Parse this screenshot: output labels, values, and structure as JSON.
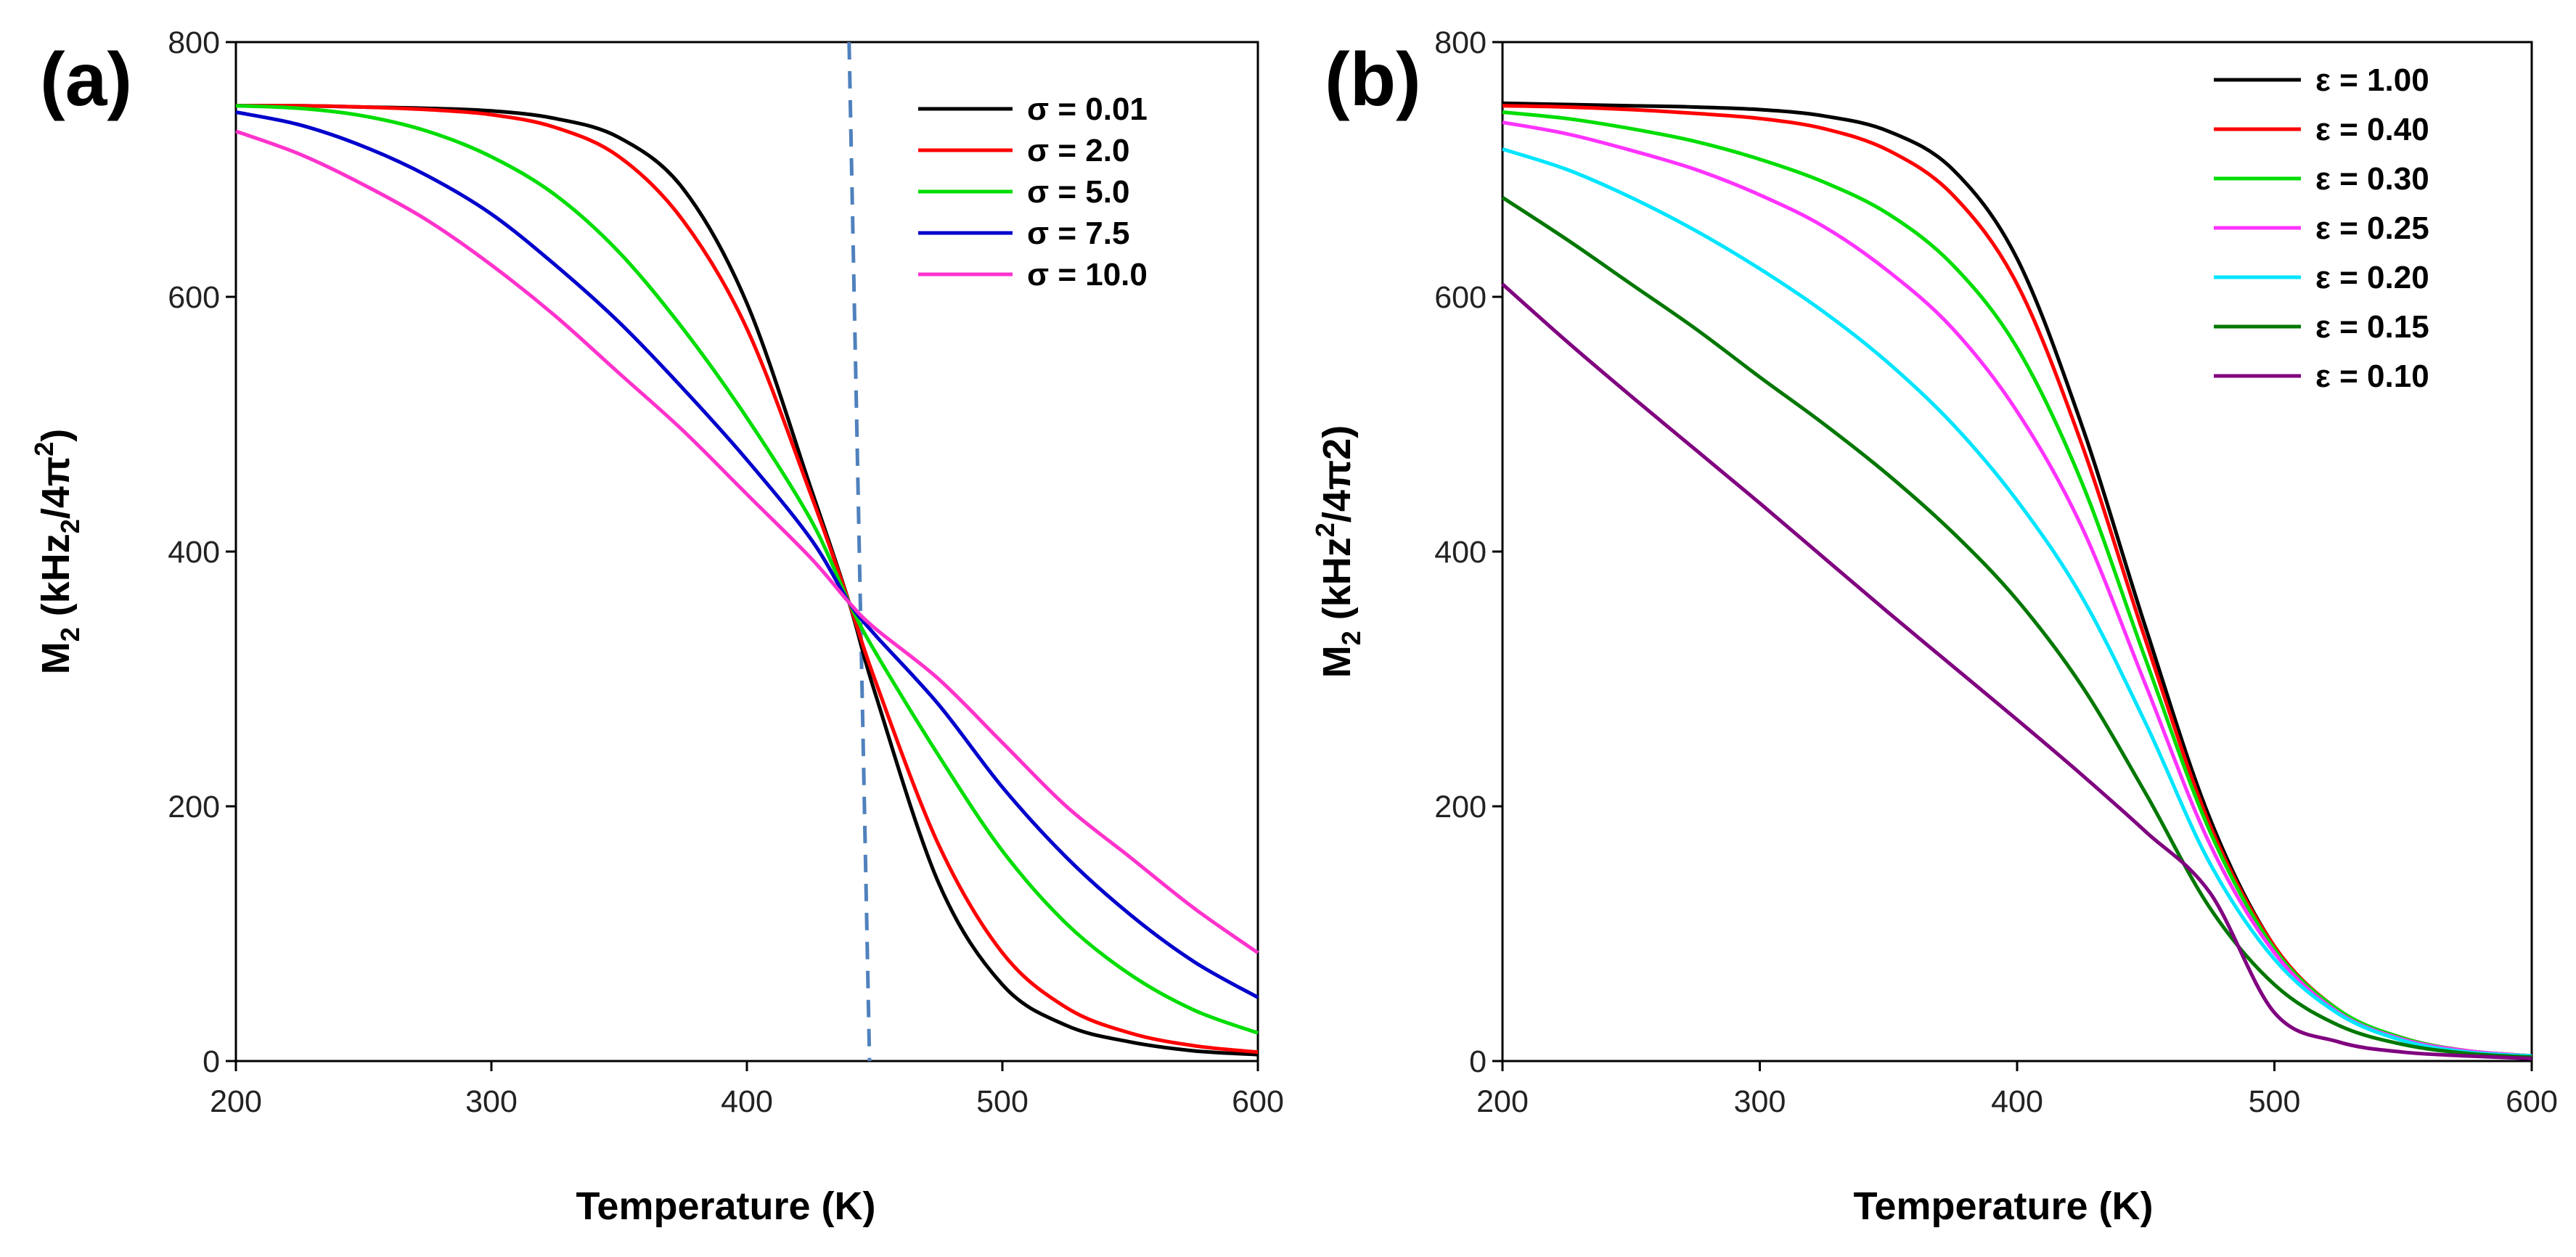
{
  "chart_data": [
    {
      "type": "line",
      "panel_label": "(a)",
      "xlabel": "Temperature (K)",
      "ylabel_main": "M",
      "ylabel_sub": "2",
      "ylabel_rest": " (kHz",
      "ylabel_sub2": "2",
      "ylabel_end": "/4π",
      "ylabel_sup": "2",
      "ylabel_close": ")",
      "xlim": [
        200,
        600
      ],
      "ylim": [
        0,
        800
      ],
      "xticks": [
        "200",
        "300",
        "400",
        "500",
        "600"
      ],
      "yticks": [
        "0",
        "200",
        "400",
        "600",
        "800"
      ],
      "legend_position": "top-right",
      "annotation": "dashed vertical line near T = 445 K",
      "dashed_line": {
        "x_top": 440,
        "x_bottom": 448,
        "y_top": 800,
        "y_bottom": 0,
        "color": "#4f81bd"
      },
      "x": [
        200,
        225,
        250,
        275,
        300,
        325,
        350,
        375,
        400,
        425,
        440,
        450,
        475,
        500,
        525,
        550,
        575,
        600
      ],
      "series": [
        {
          "name": "σ = 0.01",
          "color": "#000000",
          "values": [
            750,
            750,
            749,
            748,
            746,
            740,
            725,
            685,
            595,
            450,
            360,
            290,
            140,
            60,
            28,
            15,
            8,
            5
          ]
        },
        {
          "name": "σ =  2.0",
          "color": "#ff0000",
          "values": [
            750,
            750,
            749,
            747,
            743,
            733,
            710,
            660,
            575,
            445,
            360,
            300,
            170,
            85,
            42,
            22,
            12,
            7
          ]
        },
        {
          "name": "σ =  5.0",
          "color": "#00dd00",
          "values": [
            750,
            748,
            742,
            730,
            710,
            680,
            635,
            575,
            505,
            425,
            360,
            322,
            240,
            165,
            108,
            68,
            40,
            22
          ]
        },
        {
          "name": "σ =  7.5",
          "color": "#0000cc",
          "values": [
            745,
            735,
            718,
            695,
            665,
            625,
            580,
            528,
            472,
            410,
            360,
            335,
            280,
            215,
            160,
            115,
            78,
            50
          ]
        },
        {
          "name": "σ = 10.0",
          "color": "#ff33cc",
          "values": [
            730,
            712,
            688,
            660,
            625,
            585,
            540,
            495,
            445,
            395,
            360,
            340,
            300,
            250,
            200,
            160,
            120,
            85
          ]
        }
      ]
    },
    {
      "type": "line",
      "panel_label": "(b)",
      "xlabel": "Temperature (K)",
      "ylabel_main": "M",
      "ylabel_sub": "2",
      "ylabel_rest": " (kHz",
      "ylabel_sup": "2",
      "ylabel_end": "/4π2)",
      "xlim": [
        200,
        600
      ],
      "ylim": [
        0,
        800
      ],
      "xticks": [
        "200",
        "300",
        "400",
        "500",
        "600"
      ],
      "yticks": [
        "0",
        "200",
        "400",
        "600",
        "800"
      ],
      "legend_position": "top-right",
      "x": [
        200,
        225,
        250,
        275,
        300,
        325,
        350,
        375,
        400,
        425,
        450,
        475,
        500,
        525,
        550,
        575,
        600
      ],
      "series": [
        {
          "name": "ε = 1.00",
          "color": "#000000",
          "values": [
            752,
            751,
            750,
            749,
            747,
            742,
            730,
            700,
            630,
            500,
            340,
            190,
            90,
            40,
            18,
            8,
            4
          ]
        },
        {
          "name": "ε = 0.40",
          "color": "#ff0000",
          "values": [
            750,
            749,
            747,
            744,
            740,
            732,
            715,
            680,
            610,
            485,
            330,
            185,
            90,
            40,
            18,
            8,
            4
          ]
        },
        {
          "name": "ε = 0.30",
          "color": "#00dd00",
          "values": [
            745,
            740,
            732,
            722,
            708,
            690,
            665,
            625,
            560,
            455,
            315,
            180,
            88,
            40,
            18,
            8,
            4
          ]
        },
        {
          "name": "ε = 0.25",
          "color": "#ff33ff",
          "values": [
            737,
            728,
            715,
            700,
            680,
            655,
            620,
            575,
            510,
            420,
            295,
            170,
            85,
            38,
            17,
            8,
            4
          ]
        },
        {
          "name": "ε = 0.20",
          "color": "#00e5ff",
          "values": [
            716,
            700,
            678,
            652,
            622,
            588,
            548,
            500,
            440,
            365,
            265,
            155,
            80,
            37,
            16,
            7,
            4
          ]
        },
        {
          "name": "ε = 0.15",
          "color": "#007700",
          "values": [
            678,
            645,
            610,
            575,
            537,
            500,
            460,
            415,
            362,
            295,
            210,
            120,
            60,
            28,
            13,
            6,
            3
          ]
        },
        {
          "name": "ε = 0.10",
          "color": "#800080",
          "values": [
            610,
            565,
            522,
            480,
            438,
            395,
            352,
            310,
            268,
            225,
            180,
            132,
            38,
            15,
            7,
            4,
            2
          ]
        }
      ]
    }
  ]
}
